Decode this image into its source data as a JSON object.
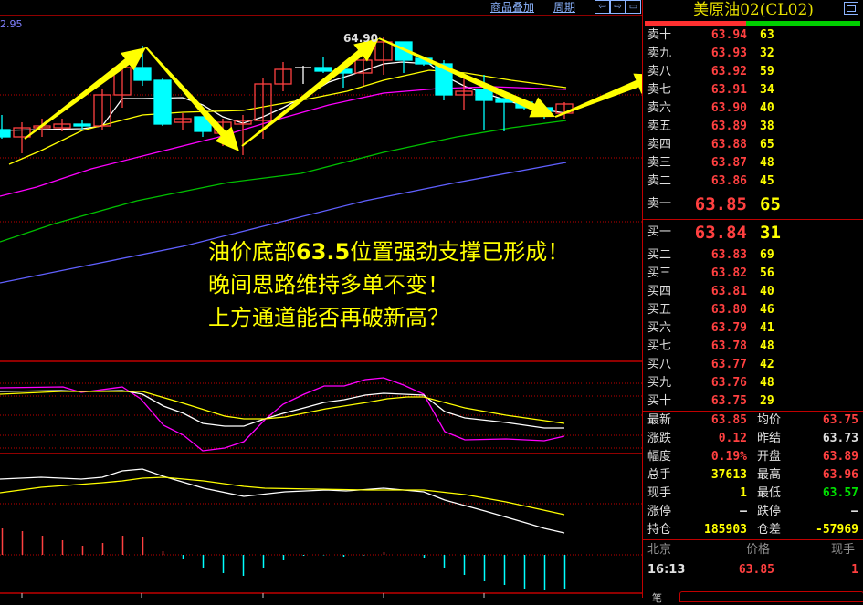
{
  "toolbar": {
    "overlay_label": "商品叠加",
    "period_label": "周期",
    "icons": [
      "arrow-left-icon",
      "arrow-right-icon",
      "layout-icon"
    ]
  },
  "chart_header": {
    "scale_top_label": "2.95",
    "peak_label": "64.90"
  },
  "annotation": {
    "line1_pre": "油价底部",
    "line1_num": "63.5",
    "line1_post": "位置强劲支撑已形成！",
    "line2": "晚间思路维持多单不变！",
    "line3": "上方通道能否再破新高？"
  },
  "colors": {
    "up": "#ff4040",
    "down": "#00ffff",
    "arrow": "#ffff00",
    "grid": "#c00000",
    "ma5": "#ffffff",
    "ma10": "#ffff00",
    "ma20": "#ff00ff",
    "ma60": "#00c000",
    "ma120": "#6060ff"
  },
  "chart_data": {
    "type": "candlestick",
    "candles": [
      {
        "o": 63.59,
        "c": 63.55,
        "h": 63.67,
        "l": 63.54
      },
      {
        "o": 63.55,
        "c": 63.6,
        "h": 63.63,
        "l": 63.46
      },
      {
        "o": 63.6,
        "c": 63.61,
        "h": 63.65,
        "l": 63.55
      },
      {
        "o": 63.6,
        "c": 63.62,
        "h": 63.65,
        "l": 63.58
      },
      {
        "o": 63.62,
        "c": 63.61,
        "h": 63.64,
        "l": 63.59
      },
      {
        "o": 63.61,
        "c": 63.78,
        "h": 63.81,
        "l": 63.59
      },
      {
        "o": 63.78,
        "c": 63.93,
        "h": 63.96,
        "l": 63.71
      },
      {
        "o": 63.93,
        "c": 63.86,
        "h": 64.05,
        "l": 63.83
      },
      {
        "o": 63.86,
        "c": 63.62,
        "h": 63.87,
        "l": 63.61
      },
      {
        "o": 63.63,
        "c": 63.65,
        "h": 63.68,
        "l": 63.59
      },
      {
        "o": 63.66,
        "c": 63.58,
        "h": 63.66,
        "l": 63.55
      },
      {
        "o": 63.57,
        "c": 63.63,
        "h": 63.65,
        "l": 63.5
      },
      {
        "o": 63.62,
        "c": 63.64,
        "h": 63.67,
        "l": 63.45
      },
      {
        "o": 63.64,
        "c": 63.84,
        "h": 63.87,
        "l": 63.54
      },
      {
        "o": 63.84,
        "c": 63.92,
        "h": 63.96,
        "l": 63.8
      },
      {
        "o": 63.93,
        "c": 63.93,
        "h": 63.94,
        "l": 63.84
      },
      {
        "o": 63.93,
        "c": 63.91,
        "h": 63.99,
        "l": 63.9
      },
      {
        "o": 63.92,
        "c": 63.9,
        "h": 63.92,
        "l": 63.82
      },
      {
        "o": 63.9,
        "c": 63.97,
        "h": 63.98,
        "l": 63.83
      },
      {
        "o": 63.97,
        "c": 64.07,
        "h": 64.1,
        "l": 63.89
      },
      {
        "o": 64.07,
        "c": 63.97,
        "h": 64.07,
        "l": 63.9
      },
      {
        "o": 63.98,
        "c": 63.95,
        "h": 63.98,
        "l": 63.94
      },
      {
        "o": 63.95,
        "c": 63.78,
        "h": 63.97,
        "l": 63.75
      },
      {
        "o": 63.78,
        "c": 63.8,
        "h": 63.87,
        "l": 63.7
      },
      {
        "o": 63.81,
        "c": 63.75,
        "h": 63.89,
        "l": 63.59
      },
      {
        "o": 63.76,
        "c": 63.74,
        "h": 63.76,
        "l": 63.58
      },
      {
        "o": 63.74,
        "c": 63.71,
        "h": 63.76,
        "l": 63.7
      },
      {
        "o": 63.71,
        "c": 63.69,
        "h": 63.71,
        "l": 63.65
      },
      {
        "o": 63.68,
        "c": 63.73,
        "h": 63.74,
        "l": 63.65
      }
    ],
    "macd_hist": [
      29,
      26,
      21,
      16,
      10,
      13,
      21,
      19,
      4,
      -5,
      -15,
      -20,
      -23,
      -15,
      -6,
      -1,
      -0.5,
      -2,
      -0.5,
      3,
      0,
      -3,
      -15,
      -22,
      -29,
      -33,
      -38,
      -39,
      -37
    ],
    "grid": true
  },
  "panel": {
    "title": "美原油02(CL02)",
    "ask_ratio": 0.47,
    "asks": [
      {
        "label": "卖十",
        "price": "63.94",
        "qty": "63"
      },
      {
        "label": "卖九",
        "price": "63.93",
        "qty": "32"
      },
      {
        "label": "卖八",
        "price": "63.92",
        "qty": "59"
      },
      {
        "label": "卖七",
        "price": "63.91",
        "qty": "34"
      },
      {
        "label": "卖六",
        "price": "63.90",
        "qty": "40"
      },
      {
        "label": "卖五",
        "price": "63.89",
        "qty": "38"
      },
      {
        "label": "卖四",
        "price": "63.88",
        "qty": "65"
      },
      {
        "label": "卖三",
        "price": "63.87",
        "qty": "48"
      },
      {
        "label": "卖二",
        "price": "63.86",
        "qty": "45"
      },
      {
        "label": "卖一",
        "price": "63.85",
        "qty": "65"
      }
    ],
    "bids": [
      {
        "label": "买一",
        "price": "63.84",
        "qty": "31"
      },
      {
        "label": "买二",
        "price": "63.83",
        "qty": "69"
      },
      {
        "label": "买三",
        "price": "63.82",
        "qty": "56"
      },
      {
        "label": "买四",
        "price": "63.81",
        "qty": "40"
      },
      {
        "label": "买五",
        "price": "63.80",
        "qty": "46"
      },
      {
        "label": "买六",
        "price": "63.79",
        "qty": "41"
      },
      {
        "label": "买七",
        "price": "63.78",
        "qty": "48"
      },
      {
        "label": "买八",
        "price": "63.77",
        "qty": "42"
      },
      {
        "label": "买九",
        "price": "63.76",
        "qty": "48"
      },
      {
        "label": "买十",
        "price": "63.75",
        "qty": "29"
      }
    ],
    "stats": [
      {
        "l1": "最新",
        "v1": "63.85",
        "c1": "#ff4040",
        "l2": "均价",
        "v2": "63.75",
        "c2": "#ff4040"
      },
      {
        "l1": "涨跌",
        "v1": "0.12",
        "c1": "#ff4040",
        "l2": "昨结",
        "v2": "63.73",
        "c2": "#e0e0e0"
      },
      {
        "l1": "幅度",
        "v1": "0.19%",
        "c1": "#ff4040",
        "l2": "开盘",
        "v2": "63.89",
        "c2": "#ff4040"
      },
      {
        "l1": "总手",
        "v1": "37613",
        "c1": "#ffff00",
        "l2": "最高",
        "v2": "63.96",
        "c2": "#ff4040"
      },
      {
        "l1": "现手",
        "v1": "1",
        "c1": "#ffff00",
        "l2": "最低",
        "v2": "63.57",
        "c2": "#00e000"
      },
      {
        "l1": "涨停",
        "v1": "—",
        "c1": "#e0e0e0",
        "l2": "跌停",
        "v2": "—",
        "c2": "#e0e0e0"
      },
      {
        "l1": "持仓",
        "v1": "185903",
        "c1": "#ffff00",
        "l2": "仓差",
        "v2": "-57969",
        "c2": "#ffff00"
      }
    ],
    "ticks_header": {
      "place": "北京",
      "price": "价格",
      "qty": "现手"
    },
    "ticks": [
      {
        "time": "16:13",
        "price": "63.85",
        "qty": "1"
      }
    ],
    "bottom_tab": "笔"
  }
}
